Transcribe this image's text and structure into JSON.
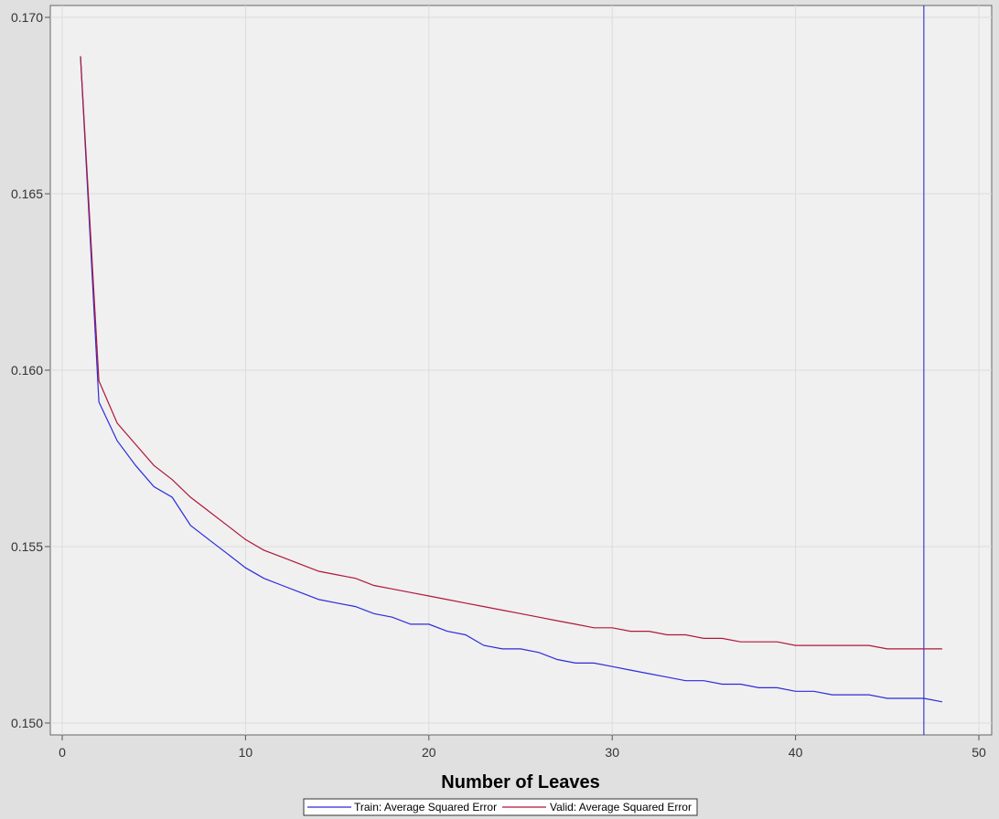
{
  "chart_data": {
    "type": "line",
    "title": "",
    "xlabel": "Number of Leaves",
    "ylabel": "",
    "xlim": [
      0,
      50
    ],
    "ylim": [
      0.1495,
      0.1705
    ],
    "x_ticks": [
      "0",
      "10",
      "20",
      "30",
      "40",
      "50"
    ],
    "y_ticks": [
      "0.150",
      "0.155",
      "0.160",
      "0.165",
      "0.170"
    ],
    "grid": true,
    "legend_position": "bottom",
    "reference_line_x": 47,
    "x": [
      1,
      2,
      3,
      4,
      5,
      6,
      7,
      8,
      9,
      10,
      11,
      12,
      13,
      14,
      15,
      16,
      17,
      18,
      19,
      20,
      21,
      22,
      23,
      24,
      25,
      26,
      27,
      28,
      29,
      30,
      31,
      32,
      33,
      34,
      35,
      36,
      37,
      38,
      39,
      40,
      41,
      42,
      43,
      44,
      45,
      46,
      47,
      48
    ],
    "series": [
      {
        "name": "Train: Average Squared Error",
        "color": "#2b2bdc",
        "values": [
          0.1689,
          0.1591,
          0.158,
          0.1573,
          0.1567,
          0.1564,
          0.1556,
          0.1552,
          0.1548,
          0.1544,
          0.1541,
          0.1539,
          0.1537,
          0.1535,
          0.1534,
          0.1533,
          0.1531,
          0.153,
          0.1528,
          0.1528,
          0.1526,
          0.1525,
          0.1522,
          0.1521,
          0.1521,
          0.152,
          0.1518,
          0.1517,
          0.1517,
          0.1516,
          0.1515,
          0.1514,
          0.1513,
          0.1512,
          0.1512,
          0.1511,
          0.1511,
          0.151,
          0.151,
          0.1509,
          0.1509,
          0.1508,
          0.1508,
          0.1508,
          0.1507,
          0.1507,
          0.1507,
          0.1506
        ]
      },
      {
        "name": "Valid: Average Squared Error",
        "color": "#b0173a",
        "values": [
          0.1689,
          0.1597,
          0.1585,
          0.1579,
          0.1573,
          0.1569,
          0.1564,
          0.156,
          0.1556,
          0.1552,
          0.1549,
          0.1547,
          0.1545,
          0.1543,
          0.1542,
          0.1541,
          0.1539,
          0.1538,
          0.1537,
          0.1536,
          0.1535,
          0.1534,
          0.1533,
          0.1532,
          0.1531,
          0.153,
          0.1529,
          0.1528,
          0.1527,
          0.1527,
          0.1526,
          0.1526,
          0.1525,
          0.1525,
          0.1524,
          0.1524,
          0.1523,
          0.1523,
          0.1523,
          0.1522,
          0.1522,
          0.1522,
          0.1522,
          0.1522,
          0.1521,
          0.1521,
          0.1521,
          0.1521
        ]
      }
    ]
  }
}
